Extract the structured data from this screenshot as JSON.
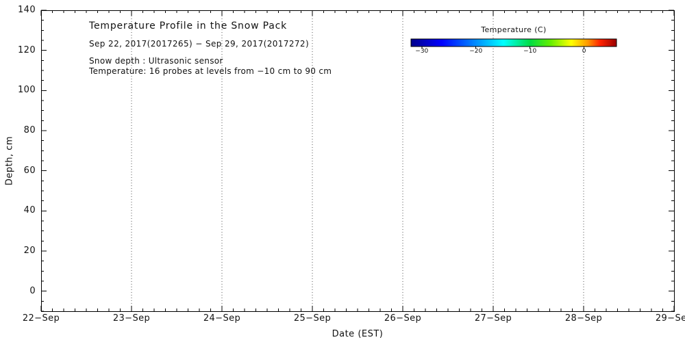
{
  "chart_data": {
    "type": "heatmap",
    "title": "Temperature Profile in the Snow Pack",
    "subtitle": "Sep 22, 2017(2017265) − Sep 29, 2017(2017272)",
    "annotations": [
      "Snow depth : Ultrasonic sensor",
      "Temperature: 16 probes at levels from −10 cm to 90 cm"
    ],
    "xlabel": "Date (EST)",
    "ylabel": "Depth, cm",
    "x_tick_labels": [
      "22−Sep",
      "23−Sep",
      "24−Sep",
      "25−Sep",
      "26−Sep",
      "27−Sep",
      "28−Sep",
      "29−Sep"
    ],
    "y_tick_values": [
      0,
      20,
      40,
      60,
      80,
      100,
      120,
      140
    ],
    "ylim": [
      -10,
      140
    ],
    "grid": "vertical-dotted-at-day-ticks",
    "series": [],
    "axis_color": "#000000",
    "background": "#ffffff",
    "colorbar": {
      "title": "Temperature (C)",
      "tick_values": [
        -30,
        -20,
        -10,
        0
      ],
      "tick_labels": [
        "−30",
        "−20",
        "−10",
        "0"
      ],
      "value_range": [
        -32,
        6
      ],
      "gradient_stops": [
        {
          "offset": 0,
          "color": "#00008B"
        },
        {
          "offset": 15,
          "color": "#0000FF"
        },
        {
          "offset": 35,
          "color": "#00AAFF"
        },
        {
          "offset": 45,
          "color": "#00FFFF"
        },
        {
          "offset": 58,
          "color": "#00DD44"
        },
        {
          "offset": 68,
          "color": "#66EE00"
        },
        {
          "offset": 78,
          "color": "#FFFF00"
        },
        {
          "offset": 86,
          "color": "#FF9900"
        },
        {
          "offset": 92,
          "color": "#FF2200"
        },
        {
          "offset": 100,
          "color": "#990000"
        }
      ]
    }
  }
}
